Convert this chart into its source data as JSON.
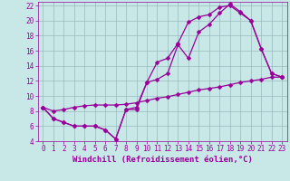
{
  "title": "",
  "xlabel": "Windchill (Refroidissement éolien,°C)",
  "ylabel": "",
  "bg_color": "#c8e8e8",
  "line_color": "#990099",
  "grid_color": "#99bbbb",
  "xlim": [
    -0.5,
    23.5
  ],
  "ylim": [
    4,
    22.5
  ],
  "xticks": [
    0,
    1,
    2,
    3,
    4,
    5,
    6,
    7,
    8,
    9,
    10,
    11,
    12,
    13,
    14,
    15,
    16,
    17,
    18,
    19,
    20,
    21,
    22,
    23
  ],
  "yticks": [
    4,
    6,
    8,
    10,
    12,
    14,
    16,
    18,
    20,
    22
  ],
  "curve1_x": [
    0,
    1,
    2,
    3,
    4,
    5,
    6,
    7,
    8,
    9,
    10,
    11,
    12,
    13,
    14,
    15,
    16,
    17,
    18,
    19,
    20,
    21,
    22,
    23
  ],
  "curve1_y": [
    8.5,
    7.0,
    6.5,
    6.0,
    6.0,
    6.0,
    5.5,
    4.3,
    8.2,
    8.2,
    11.8,
    12.2,
    13.0,
    16.8,
    15.0,
    18.5,
    19.5,
    21.0,
    22.2,
    21.2,
    20.0,
    16.3,
    13.0,
    12.5
  ],
  "curve2_x": [
    0,
    1,
    2,
    3,
    4,
    5,
    6,
    7,
    8,
    9,
    10,
    11,
    12,
    13,
    14,
    15,
    16,
    17,
    18,
    19,
    20,
    21,
    22,
    23
  ],
  "curve2_y": [
    8.5,
    7.0,
    6.5,
    6.0,
    6.0,
    6.0,
    5.5,
    4.3,
    8.2,
    8.5,
    11.8,
    14.5,
    15.0,
    17.0,
    19.8,
    20.5,
    20.8,
    21.8,
    22.0,
    21.0,
    20.0,
    16.3,
    13.0,
    12.5
  ],
  "curve3_x": [
    0,
    1,
    2,
    3,
    4,
    5,
    6,
    7,
    8,
    9,
    10,
    11,
    12,
    13,
    14,
    15,
    16,
    17,
    18,
    19,
    20,
    21,
    22,
    23
  ],
  "curve3_y": [
    8.5,
    8.0,
    8.2,
    8.5,
    8.7,
    8.8,
    8.8,
    8.8,
    8.9,
    9.1,
    9.4,
    9.7,
    9.9,
    10.2,
    10.5,
    10.8,
    11.0,
    11.2,
    11.5,
    11.8,
    12.0,
    12.2,
    12.5,
    12.5
  ],
  "marker": "D",
  "markersize": 2.5,
  "linewidth": 0.9,
  "tick_fontsize": 5.5,
  "label_fontsize": 6.5
}
